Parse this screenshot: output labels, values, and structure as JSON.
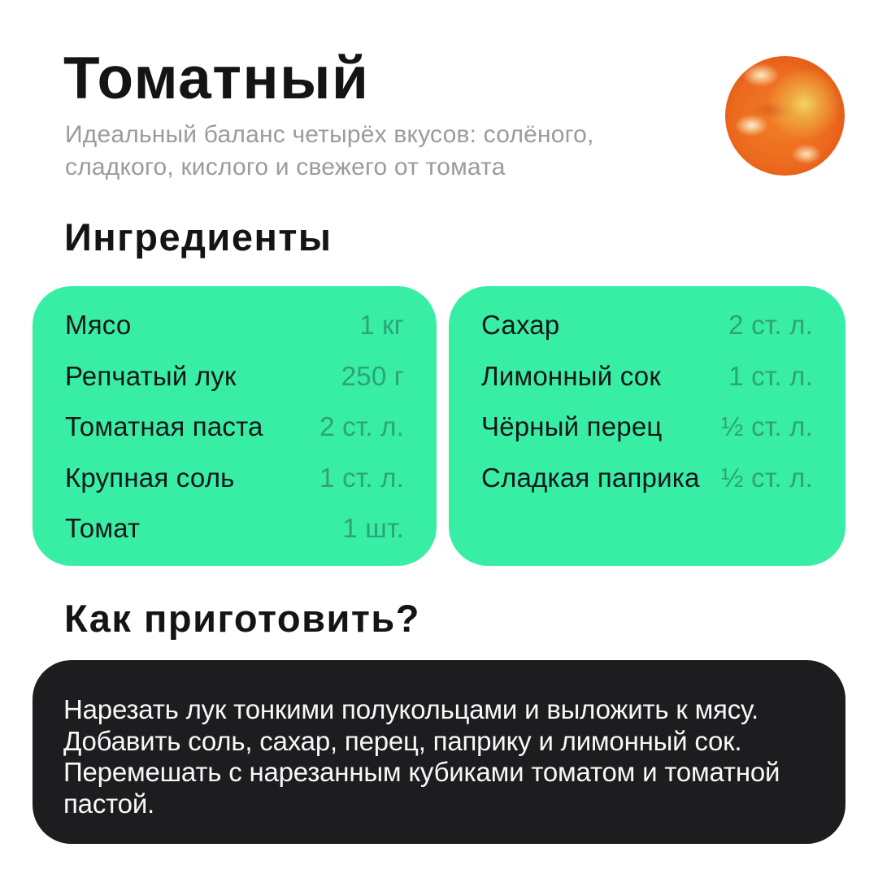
{
  "header": {
    "title": "Томатный",
    "subtitle_lines": [
      "Идеальный баланс четырёх вкусов: солёного,",
      "сладкого, кислого и свежего от томата"
    ],
    "photo": "tomato-slice-closeup"
  },
  "colors": {
    "background": "#ffffff",
    "ingredient_card": "#38eea4",
    "quantity_text": "#2da377",
    "instructions_card": "#1d1d20",
    "heading_text": "#141417",
    "subtitle_text": "#9b9ba0"
  },
  "ingredients": {
    "heading": "Ингредиенты",
    "columns": [
      {
        "items": [
          {
            "name": "Мясо",
            "qty": "1 кг"
          },
          {
            "name": "Репчатый лук",
            "qty": "250 г"
          },
          {
            "name": "Томатная паста",
            "qty": "2 ст. л."
          },
          {
            "name": "Крупная соль",
            "qty": "1 ст. л."
          },
          {
            "name": "Томат",
            "qty": "1 шт."
          }
        ]
      },
      {
        "items": [
          {
            "name": "Сахар",
            "qty": "2 ст. л."
          },
          {
            "name": "Лимонный сок",
            "qty": "1 ст. л."
          },
          {
            "name": "Чёрный перец",
            "qty": "½ ст. л."
          },
          {
            "name": "Сладкая паприка",
            "qty": "½ ст. л."
          }
        ]
      }
    ]
  },
  "instructions": {
    "heading": "Как приготовить?",
    "lines": [
      "Нарезать лук тонкими полукольцами и выложить к мясу.",
      "Добавить соль, сахар, перец, паприку и лимонный сок.",
      "Перемешать с нарезанным кубиками томатом и томатной",
      "пастой."
    ]
  }
}
